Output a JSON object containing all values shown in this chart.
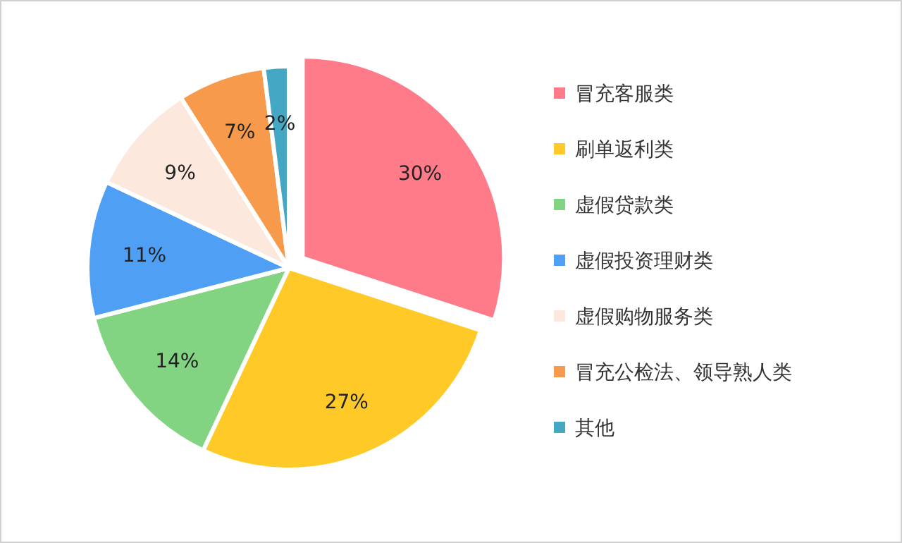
{
  "chart_data": {
    "type": "pie",
    "categories": [
      "冒充客服类",
      "刷单返利类",
      "虚假贷款类",
      "虚假投资理财类",
      "虚假购物服务类",
      "冒充公检法、领导熟人类",
      "其他"
    ],
    "values": [
      30,
      27,
      14,
      11,
      9,
      7,
      2
    ],
    "colors": [
      "#ff7b89",
      "#ffca28",
      "#82d483",
      "#4fa0f5",
      "#fce8dc",
      "#f79a4b",
      "#44a8c4"
    ],
    "value_labels": [
      "30%",
      "27%",
      "14%",
      "11%",
      "9%",
      "7%",
      "2%"
    ],
    "legend": "right"
  }
}
